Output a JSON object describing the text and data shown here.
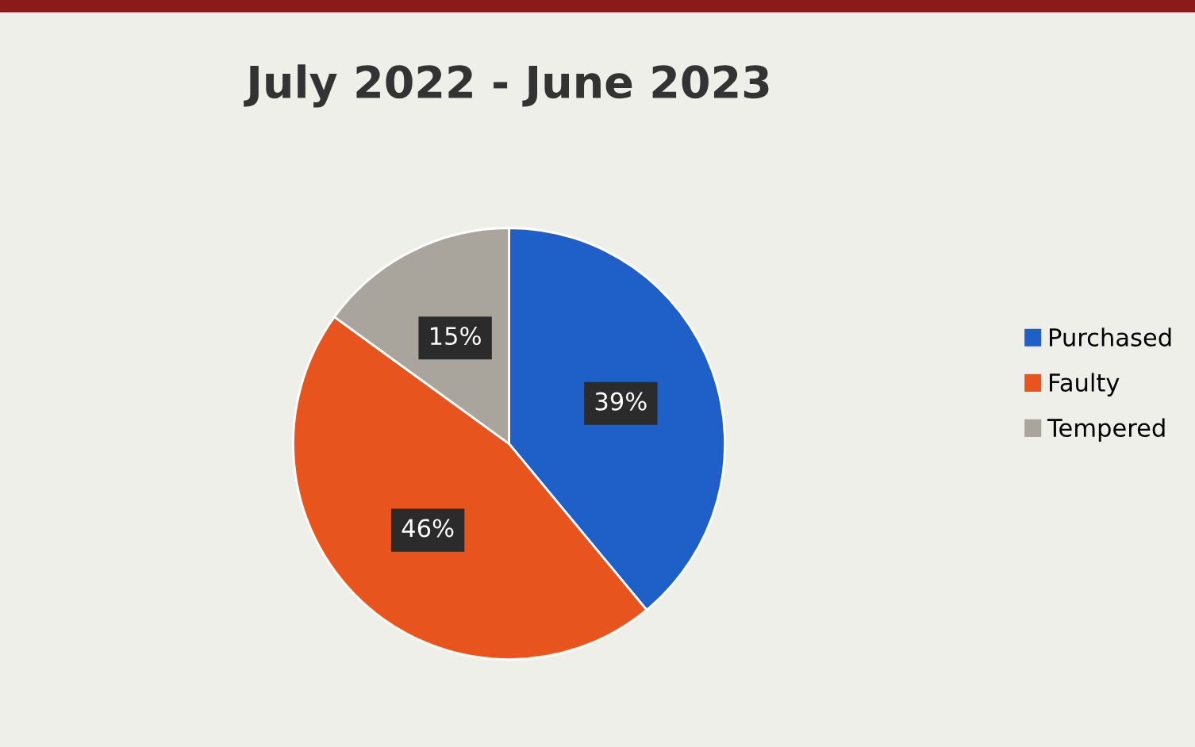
{
  "chart_data": {
    "type": "pie",
    "title": "July 2022 - June 2023",
    "categories": [
      "Purchased",
      "Faulty",
      "Tempered"
    ],
    "values": [
      39,
      46,
      15
    ],
    "colors": [
      "#1f5fc8",
      "#e8541e",
      "#a9a59d"
    ],
    "value_labels": [
      "39%",
      "46%",
      "15%"
    ],
    "legend": "right"
  }
}
